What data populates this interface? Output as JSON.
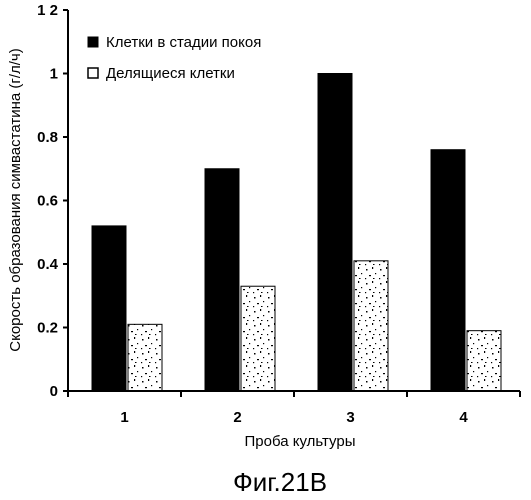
{
  "chart_data": {
    "type": "bar",
    "categories": [
      "1",
      "2",
      "3",
      "4"
    ],
    "series": [
      {
        "name": "Клетки в стадии покоя",
        "values": [
          0.52,
          0.7,
          1.0,
          0.76
        ],
        "color": "#000000",
        "fill": "solid"
      },
      {
        "name": "Делящиеся клетки",
        "values": [
          0.21,
          0.33,
          0.41,
          0.19
        ],
        "color": "#ffffff",
        "fill": "speckled"
      }
    ],
    "y_ticks": [
      "0",
      "0.2",
      "0.4",
      "0.6",
      "0.8",
      "1",
      "1 2"
    ],
    "xlabel": "Проба культуры",
    "ylabel": "Скорость образования симвастатина (г/л/ч)",
    "ylim": [
      0,
      1.2
    ],
    "grid": false,
    "legend_position": "top-center"
  },
  "caption": "Фиг.21В"
}
